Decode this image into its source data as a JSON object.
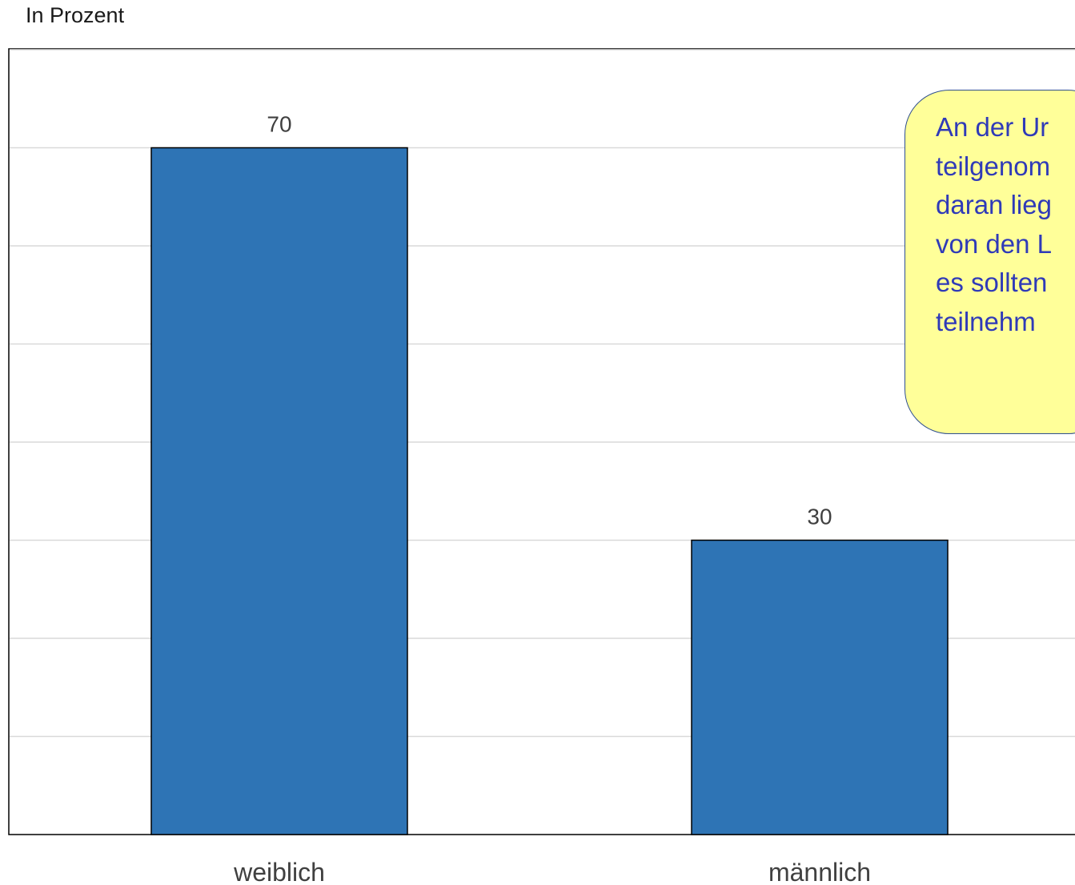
{
  "unit_label": "In Prozent",
  "callout": {
    "lines": [
      "An der Ur",
      "teilgenom",
      "daran lieg",
      "von den L",
      "es sollten",
      "teilnehm"
    ]
  },
  "colors": {
    "bar_fill": "#2e74b5",
    "bar_stroke": "#000000",
    "gridline": "#d9d9d9",
    "callout_fill": "#ffff99",
    "callout_text": "#2f3ab8"
  },
  "chart_data": {
    "type": "bar",
    "categories": [
      "weiblich",
      "männlich"
    ],
    "values": [
      70,
      30
    ],
    "data_labels": [
      "70",
      "30"
    ],
    "title": "",
    "xlabel": "",
    "ylabel": "In Prozent",
    "ylim": [
      0,
      80
    ],
    "grid": true,
    "gridline_step": 10,
    "legend": "none"
  }
}
